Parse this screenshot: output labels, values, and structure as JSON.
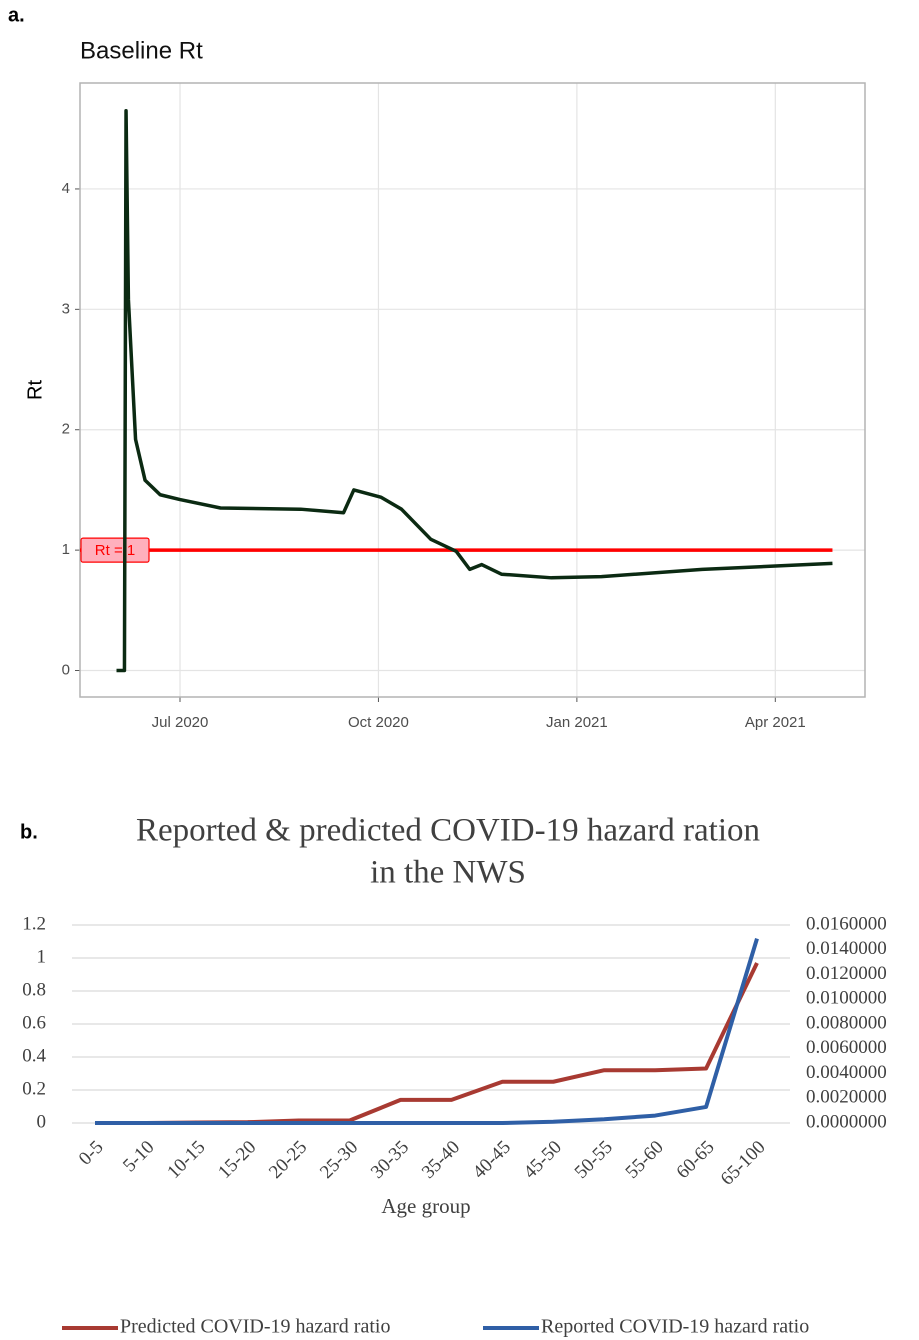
{
  "chart_data": [
    {
      "type": "line",
      "panel_label": "a.",
      "title": "Baseline Rt",
      "y_label": "Rt",
      "x": [
        2020.42,
        2020.43,
        2020.432,
        2020.435,
        2020.444,
        2020.456,
        2020.475,
        2020.5,
        2020.551,
        2020.652,
        2020.706,
        2020.719,
        2020.753,
        2020.779,
        2020.816,
        2020.848,
        2020.865,
        2020.88,
        2020.905,
        2020.968,
        2021.031,
        2021.158,
        2021.322
      ],
      "values": [
        0,
        0,
        4.65,
        3.08,
        1.92,
        1.58,
        1.46,
        1.42,
        1.35,
        1.34,
        1.31,
        1.5,
        1.44,
        1.34,
        1.09,
        0.99,
        0.84,
        0.88,
        0.8,
        0.77,
        0.78,
        0.84,
        0.89
      ],
      "color": "#0b2a12",
      "xlim": [
        2020.374,
        2021.363
      ],
      "xticks": [
        {
          "value": 2020.5,
          "label": "Jul 2020"
        },
        {
          "value": 2020.75,
          "label": "Oct 2020"
        },
        {
          "value": 2021.0,
          "label": "Jan 2021"
        },
        {
          "value": 2021.25,
          "label": "Apr 2021"
        }
      ],
      "ylim": [
        -0.22,
        4.88
      ],
      "yticks": [
        0,
        1,
        2,
        3,
        4
      ],
      "grid": true,
      "reference_line": {
        "value": 1,
        "label": "Rt = 1",
        "color": "#ff0000"
      }
    },
    {
      "type": "line",
      "panel_label": "b.",
      "title": [
        "Reported & predicted COVID-19 hazard ration",
        "in the NWS"
      ],
      "x_label": "Age group",
      "categories": [
        "0-5",
        "5-10",
        "10-15",
        "15-20",
        "20-25",
        "25-30",
        "30-35",
        "35-40",
        "40-45",
        "45-50",
        "50-55",
        "55-60",
        "60-65",
        "65-100"
      ],
      "series": [
        {
          "name": "Predicted COVID-19 hazard ratio",
          "color": "#a83a32",
          "values": [
            0,
            0,
            0.003,
            0.005,
            0.015,
            0.015,
            0.14,
            0.14,
            0.25,
            0.25,
            0.32,
            0.32,
            0.33,
            0.97
          ]
        },
        {
          "name": "Reported  COVID-19 hazard ratio",
          "color": "#2f5fa6",
          "axis": "y2",
          "values": [
            0,
            0,
            0,
            0,
            0,
            0,
            0,
            0,
            0,
            0.0001,
            0.0003,
            0.0006,
            0.0013,
            0.0149
          ]
        }
      ],
      "ylim": [
        0,
        1.2
      ],
      "yticks": [
        0,
        0.2,
        0.4,
        0.6,
        0.8,
        1,
        1.2
      ],
      "y2lim": [
        0,
        0.016
      ],
      "y2ticks": [
        {
          "value": 0,
          "label": "0.0000000"
        },
        {
          "value": 0.002,
          "label": "0.0020000"
        },
        {
          "value": 0.004,
          "label": "0.0040000"
        },
        {
          "value": 0.006,
          "label": "0.0060000"
        },
        {
          "value": 0.008,
          "label": "0.0080000"
        },
        {
          "value": 0.01,
          "label": "0.0100000"
        },
        {
          "value": 0.012,
          "label": "0.0120000"
        },
        {
          "value": 0.014,
          "label": "0.0140000"
        },
        {
          "value": 0.016,
          "label": "0.0160000"
        }
      ],
      "grid": true,
      "legend": "bottom"
    }
  ]
}
